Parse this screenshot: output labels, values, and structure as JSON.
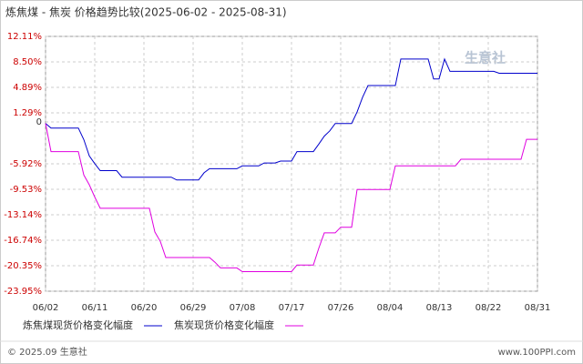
{
  "chart_data": {
    "type": "line",
    "title": "炼焦煤 - 焦炭 价格趋势比较(2025-06-02 - 2025-08-31)",
    "watermark": "生意社",
    "footer_left": "© 2025.09 生意社",
    "footer_right": "www.100PPI.com",
    "xlim": [
      "06/02",
      "08/31"
    ],
    "xticks": [
      "06/02",
      "06/11",
      "06/20",
      "06/29",
      "07/08",
      "07/17",
      "07/26",
      "08/04",
      "08/13",
      "08/22",
      "08/31"
    ],
    "ylim": [
      -23.95,
      12.11
    ],
    "yticks": [
      {
        "value": 12.11,
        "label": "12.11%"
      },
      {
        "value": 8.5,
        "label": "8.50%"
      },
      {
        "value": 4.89,
        "label": "4.89%"
      },
      {
        "value": 1.29,
        "label": "1.29%"
      },
      0,
      {
        "value": -5.92,
        "label": "-5.92%"
      },
      {
        "value": -9.53,
        "label": "-9.53%"
      },
      {
        "value": -13.14,
        "label": "-13.14%"
      },
      {
        "value": -16.74,
        "label": "-16.74%"
      },
      {
        "value": -20.35,
        "label": "-20.35%"
      },
      {
        "value": -23.95,
        "label": "-23.95%"
      }
    ],
    "grid": true,
    "series": [
      {
        "name": "炼焦煤现货价格变化幅度",
        "color": "#0000cc",
        "x": [
          "06/02",
          "06/03",
          "06/08",
          "06/09",
          "06/10",
          "06/11",
          "06/12",
          "06/15",
          "06/16",
          "06/25",
          "06/26",
          "06/30",
          "07/01",
          "07/02",
          "07/07",
          "07/08",
          "07/11",
          "07/12",
          "07/14",
          "07/15",
          "07/17",
          "07/18",
          "07/21",
          "07/22",
          "07/23",
          "07/24",
          "07/25",
          "07/28",
          "07/29",
          "07/30",
          "07/31",
          "08/05",
          "08/06",
          "08/11",
          "08/12",
          "08/13",
          "08/14",
          "08/15",
          "08/23",
          "08/24",
          "08/31"
        ],
        "values": [
          -0.2,
          -0.86,
          -0.86,
          -2.5,
          -4.8,
          -5.9,
          -6.88,
          -6.88,
          -7.81,
          -7.81,
          -8.21,
          -8.21,
          -7.2,
          -6.61,
          -6.61,
          -6.21,
          -6.21,
          -5.81,
          -5.81,
          -5.54,
          -5.54,
          -4.2,
          -4.2,
          -3.13,
          -2.0,
          -1.26,
          -0.22,
          -0.22,
          1.41,
          3.5,
          5.16,
          5.16,
          8.9,
          8.9,
          6.09,
          6.09,
          8.9,
          7.16,
          7.16,
          6.9,
          6.9
        ]
      },
      {
        "name": "焦炭现货价格变化幅度",
        "color": "#e000e0",
        "x": [
          "06/02",
          "06/03",
          "06/08",
          "06/09",
          "06/10",
          "06/11",
          "06/12",
          "06/21",
          "06/22",
          "06/23",
          "06/24",
          "07/02",
          "07/03",
          "07/04",
          "07/07",
          "07/08",
          "07/17",
          "07/18",
          "07/21",
          "07/22",
          "07/23",
          "07/25",
          "07/26",
          "07/28",
          "07/29",
          "08/04",
          "08/05",
          "08/16",
          "08/17",
          "08/28",
          "08/29",
          "08/31"
        ],
        "values": [
          -0.2,
          -4.2,
          -4.2,
          -7.5,
          -8.88,
          -10.62,
          -12.22,
          -12.22,
          -15.57,
          -16.9,
          -19.18,
          -19.18,
          -19.85,
          -20.65,
          -20.65,
          -21.18,
          -21.18,
          -20.25,
          -20.25,
          -17.84,
          -15.7,
          -15.7,
          -14.9,
          -14.9,
          -9.55,
          -9.55,
          -6.21,
          -6.21,
          -5.27,
          -5.27,
          -2.46,
          -2.46
        ]
      }
    ]
  }
}
